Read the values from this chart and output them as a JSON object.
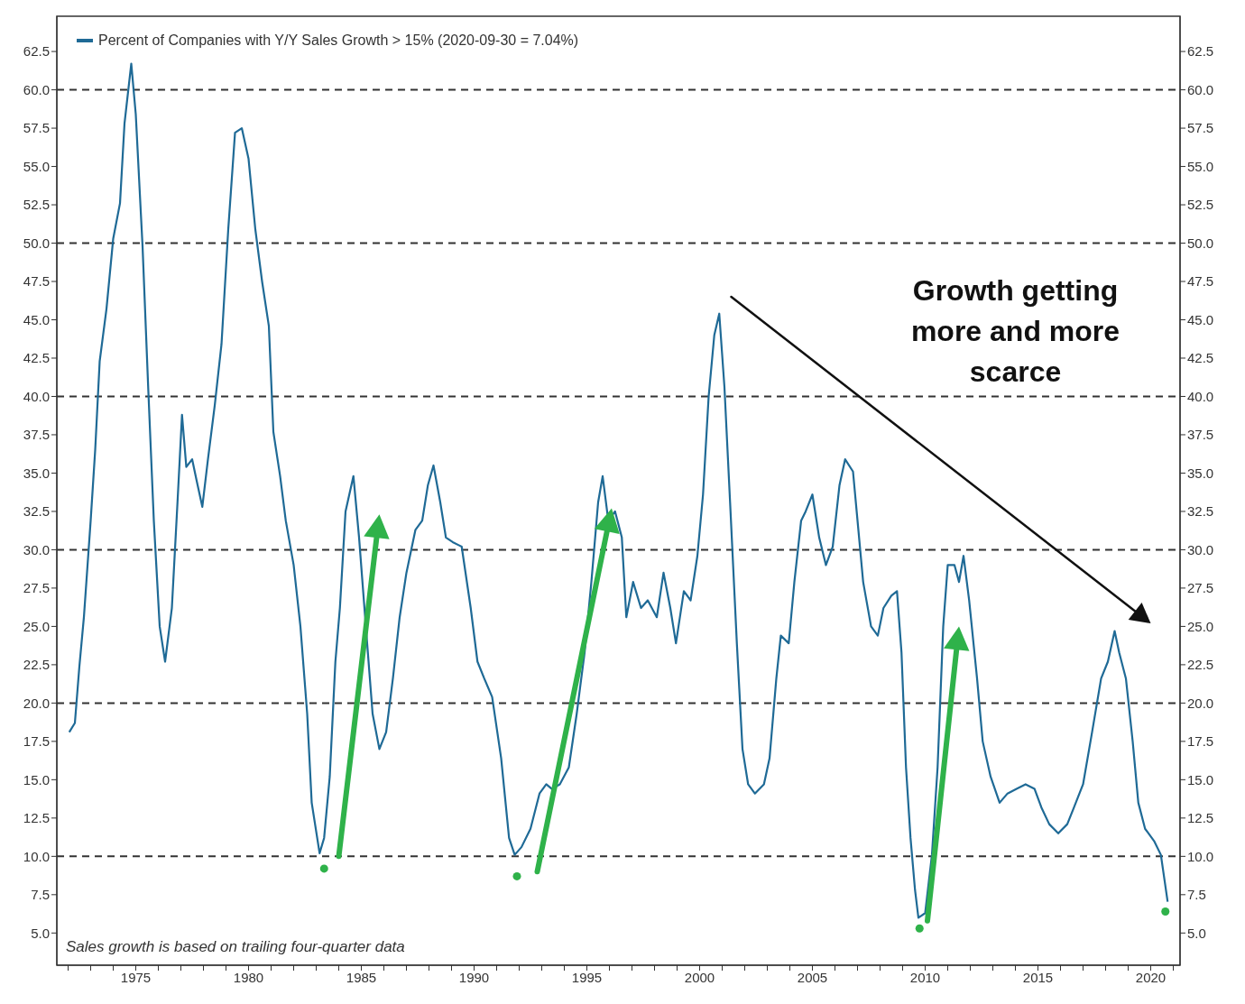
{
  "chart_data": {
    "type": "line",
    "annotations": [
      "Growth getting more and more scarce",
      "Sales growth is based on trailing four-quarter data"
    ],
    "legend": "top left",
    "grid": false,
    "xlim": [
      1971.5,
      2021.3
    ],
    "xticks": [
      {
        "value": 1972,
        "label": null
      },
      {
        "value": 1973,
        "label": null
      },
      {
        "value": 1974,
        "label": null
      },
      1975,
      {
        "value": 1976,
        "label": null
      },
      {
        "value": 1977,
        "label": null
      },
      {
        "value": 1978,
        "label": null
      },
      {
        "value": 1979,
        "label": null
      },
      1980,
      {
        "value": 1981,
        "label": null
      },
      {
        "value": 1982,
        "label": null
      },
      {
        "value": 1983,
        "label": null
      },
      {
        "value": 1984,
        "label": null
      },
      1985,
      {
        "value": 1986,
        "label": null
      },
      {
        "value": 1987,
        "label": null
      },
      {
        "value": 1988,
        "label": null
      },
      {
        "value": 1989,
        "label": null
      },
      1990,
      {
        "value": 1991,
        "label": null
      },
      {
        "value": 1992,
        "label": null
      },
      {
        "value": 1993,
        "label": null
      },
      {
        "value": 1994,
        "label": null
      },
      1995,
      {
        "value": 1996,
        "label": null
      },
      {
        "value": 1997,
        "label": null
      },
      {
        "value": 1998,
        "label": null
      },
      {
        "value": 1999,
        "label": null
      },
      2000,
      {
        "value": 2001,
        "label": null
      },
      {
        "value": 2002,
        "label": null
      },
      {
        "value": 2003,
        "label": null
      },
      {
        "value": 2004,
        "label": null
      },
      2005,
      {
        "value": 2006,
        "label": null
      },
      {
        "value": 2007,
        "label": null
      },
      {
        "value": 2008,
        "label": null
      },
      {
        "value": 2009,
        "label": null
      },
      2010,
      {
        "value": 2011,
        "label": null
      },
      {
        "value": 2012,
        "label": null
      },
      {
        "value": 2013,
        "label": null
      },
      {
        "value": 2014,
        "label": null
      },
      2015,
      {
        "value": 2016,
        "label": null
      },
      {
        "value": 2017,
        "label": null
      },
      {
        "value": 2018,
        "label": null
      },
      {
        "value": 2019,
        "label": null
      },
      2020,
      {
        "value": 2021,
        "label": null
      }
    ],
    "ylim": [
      2.9,
      64.8
    ],
    "yticks": [
      {
        "value": 5,
        "label": "5.0"
      },
      {
        "value": 7.5,
        "label": "7.5"
      },
      {
        "value": 10,
        "label": "10.0"
      },
      {
        "value": 12.5,
        "label": "12.5"
      },
      {
        "value": 15,
        "label": "15.0"
      },
      {
        "value": 17.5,
        "label": "17.5"
      },
      {
        "value": 20,
        "label": "20.0"
      },
      {
        "value": 22.5,
        "label": "22.5"
      },
      {
        "value": 25,
        "label": "25.0"
      },
      {
        "value": 27.5,
        "label": "27.5"
      },
      {
        "value": 30,
        "label": "30.0"
      },
      {
        "value": 32.5,
        "label": "32.5"
      },
      {
        "value": 35,
        "label": "35.0"
      },
      {
        "value": 37.5,
        "label": "37.5"
      },
      {
        "value": 40,
        "label": "40.0"
      },
      {
        "value": 42.5,
        "label": "42.5"
      },
      {
        "value": 45,
        "label": "45.0"
      },
      {
        "value": 47.5,
        "label": "47.5"
      },
      {
        "value": 50,
        "label": "50.0"
      },
      {
        "value": 52.5,
        "label": "52.5"
      },
      {
        "value": 55,
        "label": "55.0"
      },
      {
        "value": 57.5,
        "label": "57.5"
      },
      {
        "value": 60,
        "label": "60.0"
      },
      {
        "value": 62.5,
        "label": "62.5"
      }
    ],
    "y2lim": [
      2.9,
      64.8
    ],
    "y2ticks": [
      {
        "value": 5,
        "label": "5.0"
      },
      {
        "value": 7.5,
        "label": "7.5"
      },
      {
        "value": 10,
        "label": "10.0"
      },
      {
        "value": 12.5,
        "label": "12.5"
      },
      {
        "value": 15,
        "label": "15.0"
      },
      {
        "value": 17.5,
        "label": "17.5"
      },
      {
        "value": 20,
        "label": "20.0"
      },
      {
        "value": 22.5,
        "label": "22.5"
      },
      {
        "value": 25,
        "label": "25.0"
      },
      {
        "value": 27.5,
        "label": "27.5"
      },
      {
        "value": 30,
        "label": "30.0"
      },
      {
        "value": 32.5,
        "label": "32.5"
      },
      {
        "value": 35,
        "label": "35.0"
      },
      {
        "value": 37.5,
        "label": "37.5"
      },
      {
        "value": 40,
        "label": "40.0"
      },
      {
        "value": 42.5,
        "label": "42.5"
      },
      {
        "value": 45,
        "label": "45.0"
      },
      {
        "value": 47.5,
        "label": "47.5"
      },
      {
        "value": 50,
        "label": "50.0"
      },
      {
        "value": 52.5,
        "label": "52.5"
      },
      {
        "value": 55,
        "label": "55.0"
      },
      {
        "value": 57.5,
        "label": "57.5"
      },
      {
        "value": 60,
        "label": "60.0"
      },
      {
        "value": 62.5,
        "label": "62.5"
      }
    ],
    "ref_lines": [
      {
        "axis": "y",
        "value": 10,
        "color": "#333333",
        "line_style": "dashed"
      },
      {
        "axis": "y",
        "value": 20,
        "color": "#333333",
        "line_style": "dashed"
      },
      {
        "axis": "y",
        "value": 30,
        "color": "#333333",
        "line_style": "dashed"
      },
      {
        "axis": "y",
        "value": 40,
        "color": "#333333",
        "line_style": "dashed"
      },
      {
        "axis": "y",
        "value": 50,
        "color": "#333333",
        "line_style": "dashed"
      },
      {
        "axis": "y",
        "value": 60,
        "color": "#333333",
        "line_style": "dashed"
      }
    ],
    "series": [
      {
        "name": "Percent of Companies with Y/Y Sales Growth > 15% (2020-09-30 = 7.04%)",
        "color": "#1f6a96",
        "marker": "none",
        "line_style": "solid",
        "x": [
          1972.05,
          1972.3,
          1972.5,
          1972.7,
          1973.0,
          1973.2,
          1973.4,
          1973.7,
          1974.0,
          1974.3,
          1974.5,
          1974.8,
          1975.0,
          1975.3,
          1975.55,
          1975.8,
          1976.06,
          1976.3,
          1976.6,
          1976.85,
          1977.05,
          1977.24,
          1977.5,
          1977.7,
          1977.95,
          1978.2,
          1978.5,
          1978.8,
          1979.1,
          1979.4,
          1979.7,
          1980.0,
          1980.3,
          1980.6,
          1980.9,
          1981.1,
          1981.4,
          1981.65,
          1982.0,
          1982.3,
          1982.6,
          1982.8,
          1983.15,
          1983.35,
          1983.6,
          1983.85,
          1984.05,
          1984.3,
          1984.65,
          1984.9,
          1985.2,
          1985.5,
          1985.8,
          1986.1,
          1986.4,
          1986.7,
          1987.0,
          1987.4,
          1987.7,
          1987.95,
          1988.2,
          1988.5,
          1988.75,
          1989.05,
          1989.45,
          1989.85,
          1990.15,
          1990.45,
          1990.8,
          1991.2,
          1991.55,
          1991.8,
          1992.1,
          1992.5,
          1992.9,
          1993.2,
          1993.45,
          1993.8,
          1994.2,
          1994.55,
          1994.9,
          1995.2,
          1995.5,
          1995.7,
          1995.95,
          1996.25,
          1996.55,
          1996.75,
          1997.05,
          1997.4,
          1997.7,
          1998.1,
          1998.4,
          1998.7,
          1998.95,
          1999.3,
          1999.6,
          1999.9,
          2000.15,
          2000.4,
          2000.65,
          2000.87,
          2001.1,
          2001.35,
          2001.65,
          2001.9,
          2002.15,
          2002.45,
          2002.85,
          2003.1,
          2003.4,
          2003.6,
          2003.95,
          2004.2,
          2004.5,
          2004.7,
          2005.0,
          2005.3,
          2005.6,
          2005.9,
          2006.2,
          2006.45,
          2006.8,
          2007.0,
          2007.25,
          2007.6,
          2007.9,
          2008.15,
          2008.5,
          2008.75,
          2008.95,
          2009.15,
          2009.35,
          2009.55,
          2009.7,
          2010.0,
          2010.3,
          2010.55,
          2010.8,
          2011.0,
          2011.3,
          2011.5,
          2011.7,
          2011.95,
          2012.3,
          2012.55,
          2012.9,
          2013.3,
          2013.65,
          2014.05,
          2014.45,
          2014.85,
          2015.15,
          2015.5,
          2015.9,
          2016.3,
          2016.6,
          2017.0,
          2017.4,
          2017.8,
          2018.1,
          2018.4,
          2018.6,
          2018.9,
          2019.2,
          2019.45,
          2019.75,
          2020.15,
          2020.45,
          2020.75
        ],
        "values": [
          18.1,
          18.7,
          22.4,
          25.6,
          31.9,
          36.5,
          42.3,
          45.7,
          50.3,
          52.6,
          57.8,
          61.7,
          58.4,
          49.8,
          40.6,
          31.9,
          25.0,
          22.7,
          26.2,
          33.1,
          38.8,
          35.4,
          35.9,
          34.5,
          32.8,
          35.9,
          39.4,
          43.4,
          50.9,
          57.2,
          57.5,
          55.5,
          50.9,
          47.5,
          44.6,
          37.7,
          34.8,
          31.9,
          29.0,
          25.0,
          19.3,
          13.5,
          10.2,
          11.2,
          15.2,
          22.7,
          26.2,
          32.5,
          34.8,
          30.8,
          25.0,
          19.3,
          17.0,
          18.1,
          21.6,
          25.6,
          28.5,
          31.3,
          31.9,
          34.2,
          35.5,
          33.1,
          30.8,
          30.5,
          30.2,
          26.2,
          22.7,
          21.6,
          20.4,
          16.4,
          11.2,
          10.1,
          10.6,
          11.8,
          14.1,
          14.7,
          14.4,
          14.7,
          15.8,
          19.3,
          23.3,
          27.9,
          33.1,
          34.8,
          31.9,
          32.5,
          30.8,
          25.6,
          27.9,
          26.2,
          26.7,
          25.6,
          28.5,
          26.2,
          23.9,
          27.3,
          26.7,
          29.6,
          33.6,
          40.0,
          44.0,
          45.4,
          40.6,
          33.1,
          23.9,
          17.0,
          14.7,
          14.1,
          14.7,
          16.4,
          21.6,
          24.4,
          23.9,
          27.9,
          31.9,
          32.5,
          33.6,
          30.8,
          29.0,
          30.2,
          34.2,
          35.9,
          35.1,
          31.9,
          27.9,
          25.0,
          24.4,
          26.2,
          27.0,
          27.3,
          23.3,
          15.8,
          11.2,
          7.8,
          6.0,
          6.3,
          10.1,
          15.8,
          25.0,
          29.0,
          29.0,
          27.9,
          29.6,
          26.7,
          21.6,
          17.5,
          15.2,
          13.5,
          14.1,
          14.4,
          14.7,
          14.4,
          13.2,
          12.1,
          11.5,
          12.1,
          13.2,
          14.7,
          18.1,
          21.6,
          22.7,
          24.7,
          23.3,
          21.6,
          17.5,
          13.5,
          11.8,
          11.0,
          10.1,
          7.04
        ]
      },
      {
        "type": "scatter",
        "color": "#2fb24a",
        "marker": "circle",
        "x": [
          1983.35,
          1991.9,
          2009.75,
          2020.65
        ],
        "values": [
          9.2,
          8.7,
          5.3,
          6.4
        ]
      }
    ]
  }
}
